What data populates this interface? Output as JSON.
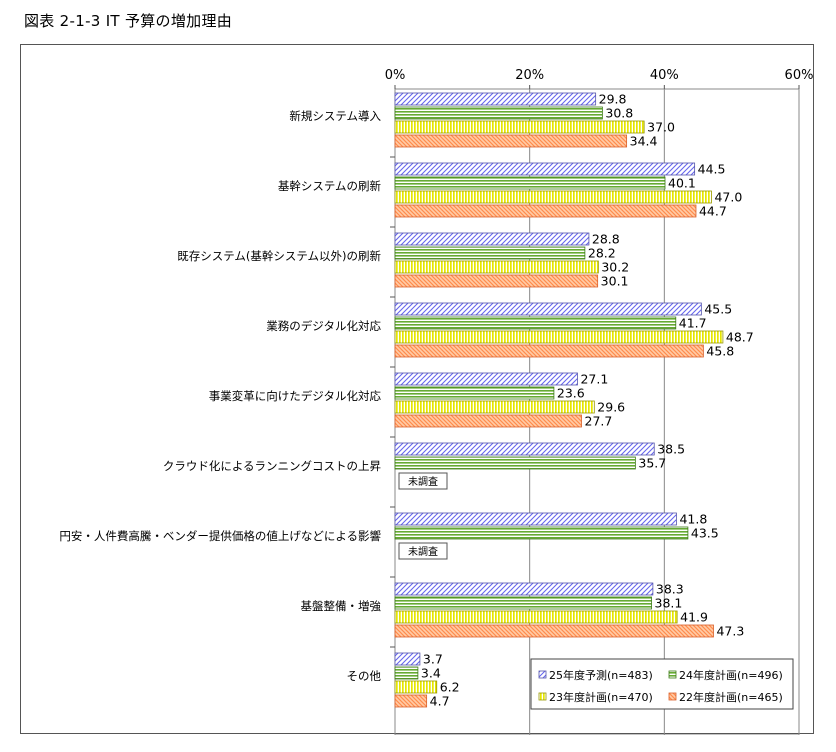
{
  "figure_title": "図表 2-1-3  IT 予算の増加理由",
  "not_surveyed_label": "未調査",
  "chart_data": {
    "type": "bar",
    "orientation": "horizontal",
    "xlim": [
      0,
      60
    ],
    "x_ticks": [
      "0%",
      "20%",
      "40%",
      "60%"
    ],
    "x_tick_values": [
      0,
      20,
      40,
      60
    ],
    "grid": true,
    "legend_position": "bottom-right",
    "categories": [
      "新規システム導入",
      "基幹システムの刷新",
      "既存システム(基幹システム以外)の刷新",
      "業務のデジタル化対応",
      "事業変革に向けたデジタル化対応",
      "クラウド化によるランニングコストの上昇",
      "円安・人件費高騰・ベンダー提供価格の値上げなどによる影響",
      "基盤整備・増強",
      "その他"
    ],
    "series": [
      {
        "name": "25年度予測(n=483)",
        "color": "#9999ff",
        "pattern": "diagonal",
        "values": [
          29.8,
          44.5,
          28.8,
          45.5,
          27.1,
          38.5,
          41.8,
          38.3,
          3.7
        ]
      },
      {
        "name": "24年度計画(n=496)",
        "color": "#66aa33",
        "pattern": "horizontal",
        "values": [
          30.8,
          40.1,
          28.2,
          41.7,
          23.6,
          35.7,
          43.5,
          38.1,
          3.4
        ]
      },
      {
        "name": "23年度計画(n=470)",
        "color": "#ffff33",
        "pattern": "vertical",
        "values": [
          37.0,
          47.0,
          30.2,
          48.7,
          29.6,
          null,
          null,
          41.9,
          6.2
        ]
      },
      {
        "name": "22年度計画(n=465)",
        "color": "#ffaa77",
        "pattern": "diagonal-back",
        "values": [
          34.4,
          44.7,
          30.1,
          45.8,
          27.7,
          null,
          null,
          47.3,
          4.7
        ]
      }
    ],
    "value_labels": [
      [
        "29.8",
        "44.5",
        "28.8",
        "45.5",
        "27.1",
        "38.5",
        "41.8",
        "38.3",
        "3.7"
      ],
      [
        "30.8",
        "40.1",
        "28.2",
        "41.7",
        "23.6",
        "35.7",
        "43.5",
        "38.1",
        "3.4"
      ],
      [
        "37.0",
        "47.0",
        "30.2",
        "48.7",
        "29.6",
        "",
        "",
        "41.9",
        "6.2"
      ],
      [
        "34.4",
        "44.7",
        "30.1",
        "45.8",
        "27.7",
        "",
        "",
        "47.3",
        "4.7"
      ]
    ]
  }
}
